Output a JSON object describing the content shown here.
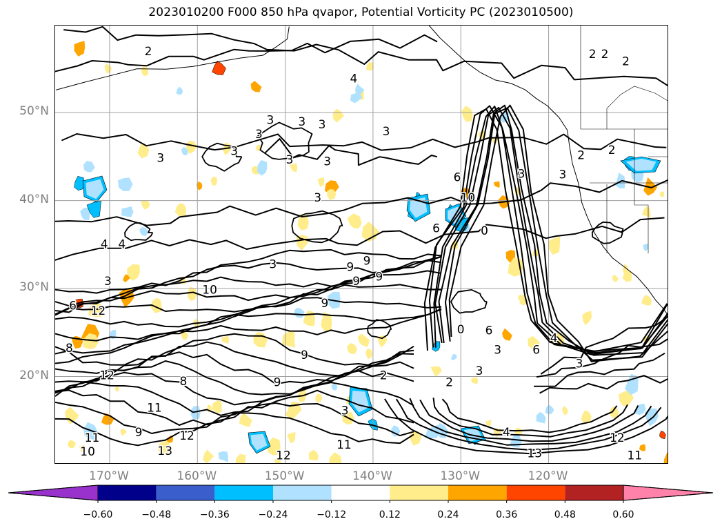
{
  "title": "2023010200 F000 850 hPa qvapor, Potential Vorticity PC (2023010500)",
  "map": {
    "lat_labels": [
      "50°N",
      "40°N",
      "30°N",
      "20°N"
    ],
    "lat_values": [
      50,
      40,
      30,
      20
    ],
    "lon_labels": [
      "170°W",
      "160°W",
      "150°W",
      "140°W",
      "130°W",
      "120°W"
    ],
    "lon_values": [
      -170,
      -160,
      -150,
      -140,
      -130,
      -120
    ],
    "extent": {
      "lon_min": -176.2,
      "lon_max": -106.3,
      "lat_min": 10.0,
      "lat_max": 59.9
    },
    "gridlines": true,
    "contour_labels": [
      {
        "text": "2",
        "lon": -165.6,
        "lat": 56.9
      },
      {
        "text": "4",
        "lon": -142.2,
        "lat": 53.8
      },
      {
        "text": "3",
        "lon": -148.1,
        "lat": 48.9
      },
      {
        "text": "3",
        "lon": -151.7,
        "lat": 49.1
      },
      {
        "text": "3",
        "lon": -145.8,
        "lat": 48.6
      },
      {
        "text": "3",
        "lon": -138.5,
        "lat": 47.8
      },
      {
        "text": "3",
        "lon": -153.0,
        "lat": 47.5
      },
      {
        "text": "3",
        "lon": -155.8,
        "lat": 45.6
      },
      {
        "text": "3",
        "lon": -164.2,
        "lat": 44.8
      },
      {
        "text": "3",
        "lon": -149.5,
        "lat": 44.6
      },
      {
        "text": "3",
        "lon": -145.2,
        "lat": 44.4
      },
      {
        "text": "3",
        "lon": -146.3,
        "lat": 40.3
      },
      {
        "text": "3",
        "lon": -123.1,
        "lat": 43.0
      },
      {
        "text": "3",
        "lon": -118.4,
        "lat": 42.9
      },
      {
        "text": "2",
        "lon": -115.0,
        "lat": 56.6
      },
      {
        "text": "2",
        "lon": -113.6,
        "lat": 56.6
      },
      {
        "text": "2",
        "lon": -111.2,
        "lat": 55.8
      },
      {
        "text": "2",
        "lon": -116.3,
        "lat": 45.1
      },
      {
        "text": "2",
        "lon": -112.8,
        "lat": 45.7
      },
      {
        "text": "4",
        "lon": -170.6,
        "lat": 35.0
      },
      {
        "text": "4",
        "lon": -168.6,
        "lat": 35.0
      },
      {
        "text": "3",
        "lon": -170.2,
        "lat": 30.8
      },
      {
        "text": "3",
        "lon": -151.4,
        "lat": 32.7
      },
      {
        "text": "9",
        "lon": -140.7,
        "lat": 33.1
      },
      {
        "text": "9",
        "lon": -142.6,
        "lat": 32.4
      },
      {
        "text": "9",
        "lon": -141.9,
        "lat": 30.8
      },
      {
        "text": "9",
        "lon": -145.5,
        "lat": 28.3
      },
      {
        "text": "9",
        "lon": -139.3,
        "lat": 31.3
      },
      {
        "text": "10",
        "lon": -158.6,
        "lat": 29.8
      },
      {
        "text": "6",
        "lon": -174.2,
        "lat": 28.0
      },
      {
        "text": "6",
        "lon": -130.4,
        "lat": 42.6
      },
      {
        "text": "10",
        "lon": -129.2,
        "lat": 40.3
      },
      {
        "text": "0",
        "lon": -127.3,
        "lat": 36.5
      },
      {
        "text": "6",
        "lon": -132.8,
        "lat": 36.8
      },
      {
        "text": "0",
        "lon": -130.0,
        "lat": 25.3
      },
      {
        "text": "6",
        "lon": -126.8,
        "lat": 25.2
      },
      {
        "text": "12",
        "lon": -170.3,
        "lat": 20.1
      },
      {
        "text": "12",
        "lon": -171.3,
        "lat": 27.4
      },
      {
        "text": "8",
        "lon": -174.6,
        "lat": 23.2
      },
      {
        "text": "8",
        "lon": -161.6,
        "lat": 19.4
      },
      {
        "text": "9",
        "lon": -150.9,
        "lat": 19.3
      },
      {
        "text": "9",
        "lon": -147.8,
        "lat": 22.4
      },
      {
        "text": "2",
        "lon": -138.8,
        "lat": 20.1
      },
      {
        "text": "2",
        "lon": -131.3,
        "lat": 19.3
      },
      {
        "text": "3",
        "lon": -127.9,
        "lat": 20.6
      },
      {
        "text": "3",
        "lon": -125.8,
        "lat": 23.0
      },
      {
        "text": "6",
        "lon": -121.4,
        "lat": 23.0
      },
      {
        "text": "4",
        "lon": -119.4,
        "lat": 24.3
      },
      {
        "text": "3",
        "lon": -116.5,
        "lat": 21.4
      },
      {
        "text": "3",
        "lon": -143.2,
        "lat": 16.1
      },
      {
        "text": "4",
        "lon": -124.8,
        "lat": 13.6
      },
      {
        "text": "13",
        "lon": -121.6,
        "lat": 11.2
      },
      {
        "text": "12",
        "lon": -112.2,
        "lat": 13.0
      },
      {
        "text": "11",
        "lon": -110.2,
        "lat": 11.0
      },
      {
        "text": "13",
        "lon": -163.7,
        "lat": 11.5
      },
      {
        "text": "12",
        "lon": -161.2,
        "lat": 13.2
      },
      {
        "text": "11",
        "lon": -164.9,
        "lat": 16.4
      },
      {
        "text": "10",
        "lon": -172.5,
        "lat": 11.4
      },
      {
        "text": "11",
        "lon": -172.0,
        "lat": 13.0
      },
      {
        "text": "9",
        "lon": -166.7,
        "lat": 13.6
      },
      {
        "text": "12",
        "lon": -150.2,
        "lat": 11.0
      },
      {
        "text": "11",
        "lon": -143.3,
        "lat": 12.2
      }
    ]
  },
  "colorbar": {
    "levels": [
      -0.6,
      -0.48,
      -0.36,
      -0.24,
      -0.12,
      0.12,
      0.24,
      0.36,
      0.48,
      0.6
    ],
    "tick_labels": [
      "−0.60",
      "−0.48",
      "−0.36",
      "−0.24",
      "−0.12",
      "0.12",
      "0.24",
      "0.36",
      "0.48",
      "0.60"
    ],
    "colors": [
      "#9932cc",
      "#00008b",
      "#3a5fcd",
      "#00bfff",
      "#b0e2ff",
      "#ffffff",
      "#ffec8b",
      "#ffa500",
      "#ff4500",
      "#b22222",
      "#ff82ab"
    ],
    "extend": "both"
  }
}
